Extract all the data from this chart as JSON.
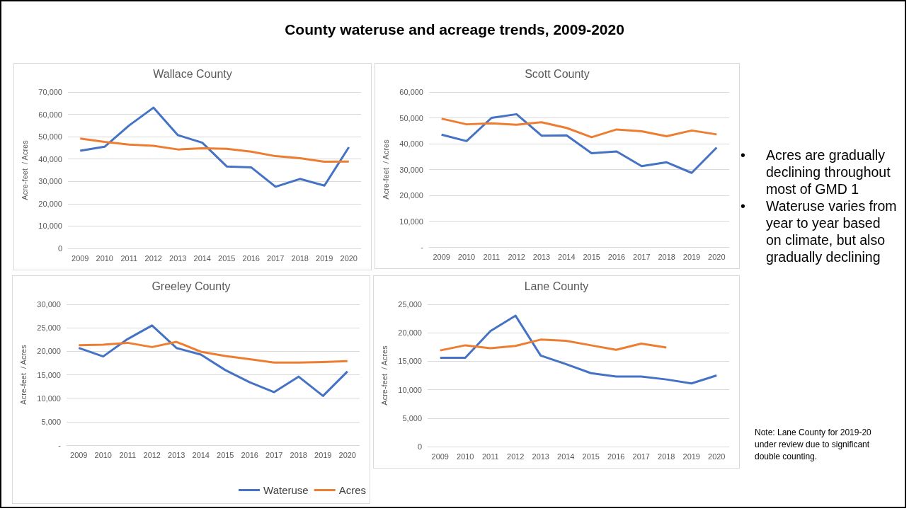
{
  "chart_data": [
    {
      "type": "other",
      "title": "County wateruse and acreage trends, 2009-2020"
    },
    {
      "type": "line",
      "title": "Wallace County",
      "ylabel": "Acre-feet  / Acres",
      "categories": [
        "2009",
        "2010",
        "2011",
        "2012",
        "2013",
        "2014",
        "2015",
        "2016",
        "2017",
        "2018",
        "2019",
        "2020"
      ],
      "series": [
        {
          "color": "#4472c4",
          "values": [
            43700,
            45500,
            55000,
            63000,
            50700,
            47300,
            36700,
            36300,
            27600,
            31100,
            28100,
            45300
          ]
        },
        {
          "color": "#ed7d31",
          "values": [
            49200,
            47700,
            46500,
            45900,
            44300,
            44800,
            44600,
            43300,
            41300,
            40400,
            38800,
            38900
          ]
        }
      ],
      "ylim": [
        0,
        70000
      ],
      "yticks": [
        0,
        {
          "value": 10000,
          "label": "10,000"
        },
        {
          "value": 20000,
          "label": "20,000"
        },
        {
          "value": 30000,
          "label": "30,000"
        },
        {
          "value": 40000,
          "label": "40,000"
        },
        {
          "value": 50000,
          "label": "50,000"
        },
        {
          "value": 60000,
          "label": "60,000"
        },
        {
          "value": 70000,
          "label": "70,000"
        }
      ],
      "grid": "y"
    },
    {
      "type": "line",
      "title": "Scott County",
      "ylabel": "Acre-feet  / Acres",
      "categories": [
        "2009",
        "2010",
        "2011",
        "2012",
        "2013",
        "2014",
        "2015",
        "2016",
        "2017",
        "2018",
        "2019",
        "2020"
      ],
      "series": [
        {
          "color": "#4472c4",
          "values": [
            43500,
            41000,
            50000,
            51400,
            43100,
            43200,
            36300,
            37000,
            31300,
            32800,
            28700,
            38500
          ]
        },
        {
          "color": "#ed7d31",
          "values": [
            49700,
            47500,
            47900,
            47300,
            48300,
            46100,
            42500,
            45500,
            44800,
            42900,
            45100,
            43600
          ]
        }
      ],
      "ylim": [
        0,
        60000
      ],
      "yticks": [
        {
          "value": 0,
          "label": "-"
        },
        {
          "value": 10000,
          "label": "10,000"
        },
        {
          "value": 20000,
          "label": "20,000"
        },
        {
          "value": 30000,
          "label": "30,000"
        },
        {
          "value": 40000,
          "label": "40,000"
        },
        {
          "value": 50000,
          "label": "50,000"
        },
        {
          "value": 60000,
          "label": "60,000"
        }
      ],
      "grid": "y"
    },
    {
      "type": "line",
      "title": "Greeley County",
      "ylabel": "Acre-feet  / Acres",
      "categories": [
        "2009",
        "2010",
        "2011",
        "2012",
        "2013",
        "2014",
        "2015",
        "2016",
        "2017",
        "2018",
        "2019",
        "2020"
      ],
      "series": [
        {
          "name": "Wateruse",
          "color": "#4472c4",
          "values": [
            20700,
            18900,
            22600,
            25500,
            20700,
            19300,
            16000,
            13400,
            11300,
            14600,
            10500,
            15700
          ]
        },
        {
          "name": "Acres",
          "color": "#ed7d31",
          "values": [
            21300,
            21400,
            21800,
            20900,
            22000,
            19900,
            19000,
            18300,
            17600,
            17600,
            17700,
            17900
          ]
        }
      ],
      "ylim": [
        0,
        30000
      ],
      "yticks": [
        {
          "value": 0,
          "label": "-"
        },
        {
          "value": 5000,
          "label": "5,000"
        },
        {
          "value": 10000,
          "label": "10,000"
        },
        {
          "value": 15000,
          "label": "15,000"
        },
        {
          "value": 20000,
          "label": "20,000"
        },
        {
          "value": 25000,
          "label": "25,000"
        },
        {
          "value": 30000,
          "label": "30,000"
        }
      ],
      "grid": "y",
      "legend": "bottom"
    },
    {
      "type": "line",
      "title": "Lane County",
      "ylabel": "Acre-feet  / Acres",
      "categories": [
        "2009",
        "2010",
        "2011",
        "2012",
        "2013",
        "2014",
        "2015",
        "2016",
        "2017",
        "2018",
        "2019",
        "2020"
      ],
      "series": [
        {
          "color": "#4472c4",
          "values": [
            15600,
            15600,
            20300,
            23000,
            16000,
            14500,
            12900,
            12300,
            12300,
            11800,
            11100,
            12500
          ]
        },
        {
          "color": "#ed7d31",
          "values": [
            16900,
            17800,
            17300,
            17700,
            18800,
            18600,
            17800,
            17000,
            18100,
            17400,
            null,
            null
          ]
        }
      ],
      "ylim": [
        0,
        25000
      ],
      "yticks": [
        0,
        {
          "value": 5000,
          "label": "5,000"
        },
        {
          "value": 10000,
          "label": "10,000"
        },
        {
          "value": 15000,
          "label": "15,000"
        },
        {
          "value": 20000,
          "label": "20,000"
        },
        {
          "value": 25000,
          "label": "25,000"
        }
      ],
      "grid": "y"
    },
    {
      "type": "other",
      "annotations": [
        "• Acres are gradually declining throughout most of GMD 1",
        "• Wateruse varies from year to year based on climate, but also gradually declining",
        "Note: Lane County for 2019-20 under review due to significant double counting."
      ]
    }
  ]
}
